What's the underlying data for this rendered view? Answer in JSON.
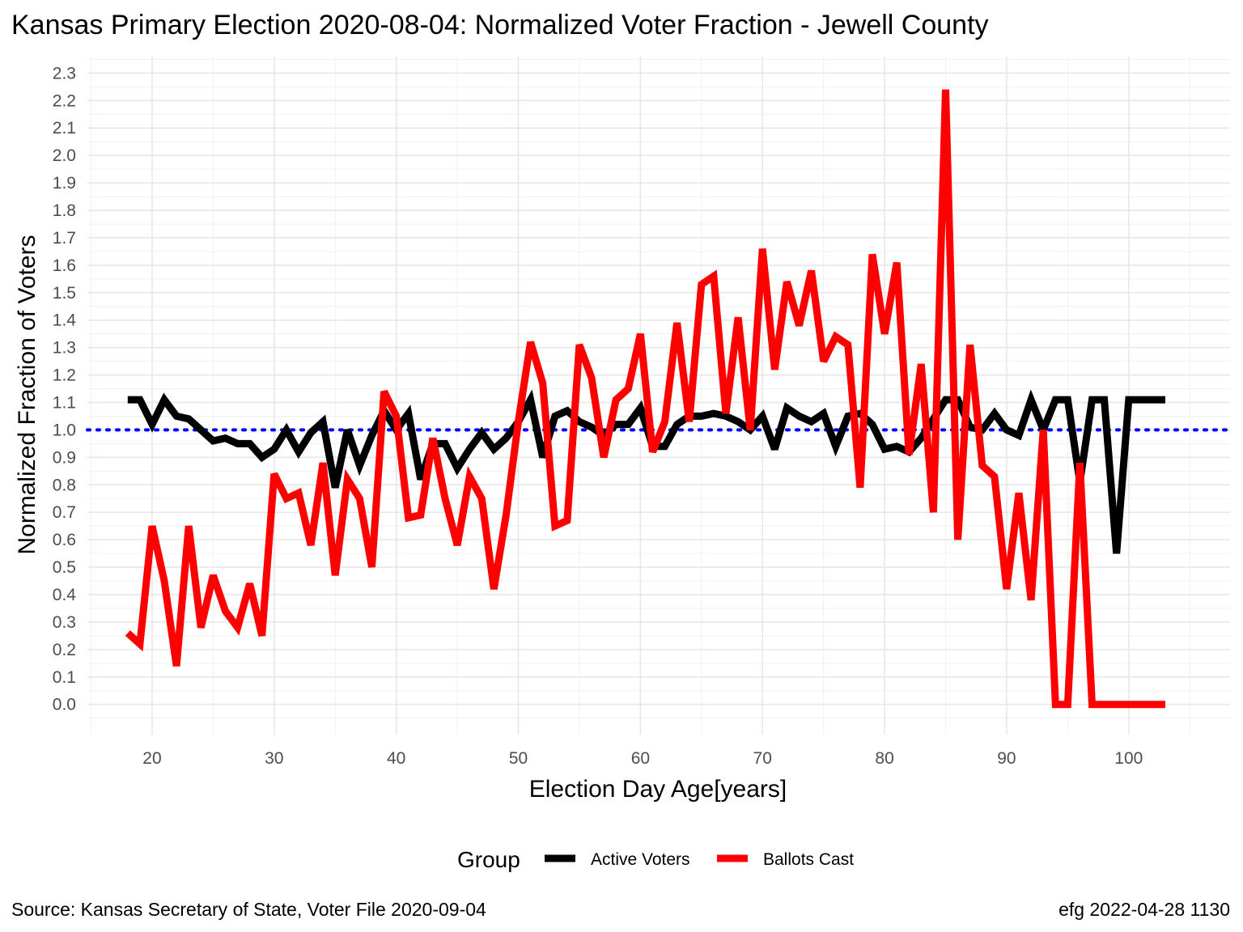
{
  "chart_data": {
    "type": "line",
    "title": "Kansas Primary Election 2020-08-04:  Normalized Voter Fraction - Jewell County",
    "xlabel": "Election Day Age[years]",
    "ylabel": "Normalized Fraction of Voters",
    "xlim": [
      14.7,
      108.3
    ],
    "ylim": [
      -0.11,
      2.36
    ],
    "x_ticks": [
      20,
      30,
      40,
      50,
      60,
      70,
      80,
      90,
      100
    ],
    "x_tick_labels": [
      "20",
      "30",
      "40",
      "50",
      "60",
      "70",
      "80",
      "90",
      "100"
    ],
    "y_ticks": [
      0.0,
      0.1,
      0.2,
      0.3,
      0.4,
      0.5,
      0.6,
      0.7,
      0.8,
      0.9,
      1.0,
      1.1,
      1.2,
      1.3,
      1.4,
      1.5,
      1.6,
      1.7,
      1.8,
      1.9,
      2.0,
      2.1,
      2.2,
      2.3
    ],
    "y_tick_labels": [
      "0.0",
      "0.1",
      "0.2",
      "0.3",
      "0.4",
      "0.5",
      "0.6",
      "0.7",
      "0.8",
      "0.9",
      "1.0",
      "1.1",
      "1.2",
      "1.3",
      "1.4",
      "1.5",
      "1.6",
      "1.7",
      "1.8",
      "1.9",
      "2.0",
      "2.1",
      "2.2",
      "2.3"
    ],
    "grid": true,
    "reference_line": {
      "y": 1.0,
      "color": "#0000ff",
      "style": "dotted"
    },
    "x": [
      18,
      19,
      20,
      21,
      22,
      23,
      24,
      25,
      26,
      27,
      28,
      29,
      30,
      31,
      32,
      33,
      34,
      35,
      36,
      37,
      38,
      39,
      40,
      41,
      42,
      43,
      44,
      45,
      46,
      47,
      48,
      49,
      50,
      51,
      52,
      53,
      54,
      55,
      56,
      57,
      58,
      59,
      60,
      61,
      62,
      63,
      64,
      65,
      66,
      67,
      68,
      69,
      70,
      71,
      72,
      73,
      74,
      75,
      76,
      77,
      78,
      79,
      80,
      81,
      82,
      83,
      84,
      85,
      86,
      87,
      88,
      89,
      90,
      91,
      92,
      93,
      94,
      95,
      96,
      97,
      98,
      99,
      100,
      101,
      102,
      103
    ],
    "series": [
      {
        "name": "Active Voters",
        "color": "#000000",
        "values": [
          1.11,
          1.11,
          1.02,
          1.11,
          1.05,
          1.04,
          1.0,
          0.96,
          0.97,
          0.95,
          0.95,
          0.9,
          0.93,
          1.0,
          0.92,
          0.99,
          1.03,
          0.79,
          1.0,
          0.87,
          0.98,
          1.07,
          1.0,
          1.06,
          0.82,
          0.95,
          0.95,
          0.86,
          0.93,
          0.99,
          0.93,
          0.97,
          1.03,
          1.11,
          0.9,
          1.05,
          1.07,
          1.03,
          1.01,
          0.98,
          1.02,
          1.02,
          1.08,
          0.94,
          0.94,
          1.02,
          1.05,
          1.05,
          1.06,
          1.05,
          1.03,
          1.0,
          1.05,
          0.93,
          1.08,
          1.05,
          1.03,
          1.06,
          0.94,
          1.05,
          1.06,
          1.02,
          0.93,
          0.94,
          0.92,
          0.97,
          1.04,
          1.11,
          1.11,
          1.01,
          1.0,
          1.06,
          1.0,
          0.98,
          1.11,
          1.0,
          1.11,
          1.11,
          0.81,
          1.11,
          1.11,
          0.55,
          1.11,
          1.11,
          1.11,
          1.11
        ]
      },
      {
        "name": "Ballots Cast",
        "color": "#ff0000",
        "values": [
          0.26,
          0.22,
          0.65,
          0.45,
          0.14,
          0.65,
          0.28,
          0.47,
          0.34,
          0.28,
          0.44,
          0.25,
          0.84,
          0.75,
          0.77,
          0.58,
          0.88,
          0.47,
          0.82,
          0.75,
          0.5,
          1.14,
          1.05,
          0.68,
          0.69,
          0.97,
          0.75,
          0.58,
          0.83,
          0.75,
          0.42,
          0.69,
          1.03,
          1.32,
          1.17,
          0.65,
          0.67,
          1.31,
          1.19,
          0.9,
          1.11,
          1.15,
          1.35,
          0.92,
          1.03,
          1.39,
          1.03,
          1.53,
          1.56,
          1.06,
          1.41,
          1.0,
          1.66,
          1.22,
          1.54,
          1.38,
          1.58,
          1.25,
          1.34,
          1.31,
          0.79,
          1.64,
          1.35,
          1.61,
          0.91,
          1.24,
          0.7,
          2.24,
          0.6,
          1.31,
          0.87,
          0.83,
          0.42,
          0.77,
          0.38,
          1.0,
          0.0,
          0.0,
          0.88,
          0.0,
          0.0,
          0.0,
          0.0,
          0.0,
          0.0,
          0.0
        ]
      }
    ],
    "legend": {
      "title": "Group",
      "position": "bottom",
      "entries": [
        "Active Voters",
        "Ballots Cast"
      ]
    }
  },
  "caption": {
    "source": "Source:  Kansas Secretary of State, Voter File  2020-09-04",
    "stamp": "efg 2022-04-28 1130"
  }
}
